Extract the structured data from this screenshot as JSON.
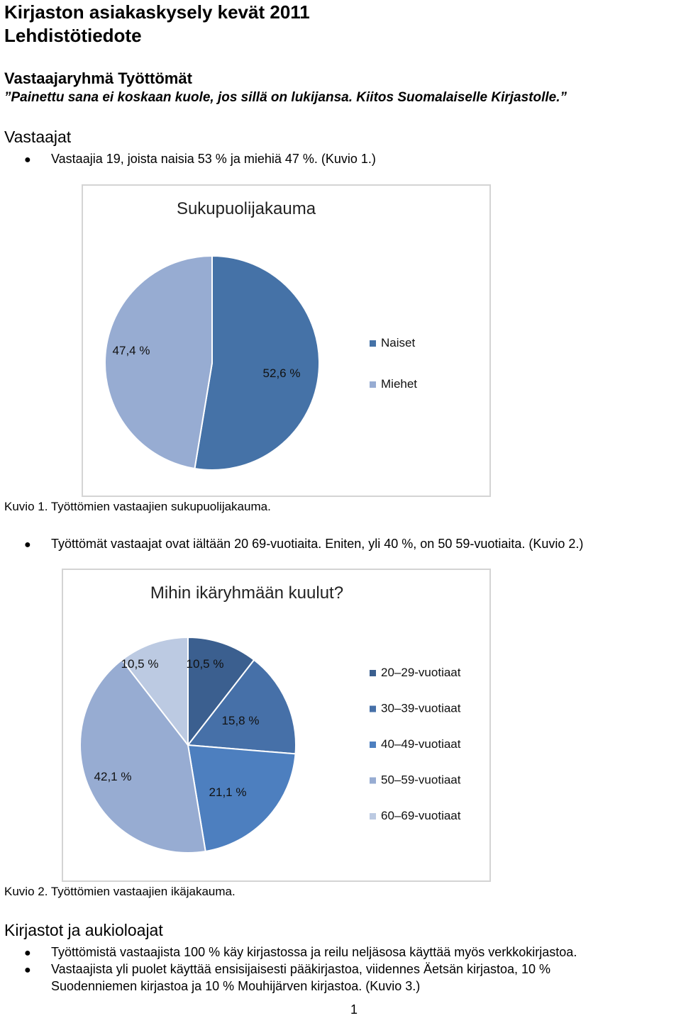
{
  "document": {
    "title_line1": "Kirjaston asiakaskysely kevät 2011",
    "title_line2": "Lehdistötiedote",
    "group_heading": "Vastaajaryhmä Työttömät",
    "quote": "”Painettu sana ei koskaan kuole, jos sillä on lukijansa. Kiitos Suomalaiselle Kirjastolle.”",
    "section_respondents": "Vastaajat",
    "bullet_1": "Vastaajia 19, joista naisia 53 % ja miehiä 47 %. (Kuvio 1.)",
    "caption_1": "Kuvio 1. Työttömien vastaajien sukupuolijakauma.",
    "bullet_2": "Työttömät vastaajat ovat iältään 20 69-vuotiaita. Eniten, yli 40 %, on 50 59-vuotiaita. (Kuvio 2.)",
    "caption_2": "Kuvio 2. Työttömien vastaajien ikäjakauma.",
    "section_libraries": "Kirjastot ja aukioloajat",
    "bullet_3": "Työttömistä vastaajista 100 % käy kirjastossa ja reilu neljäsosa käyttää myös verkkokirjastoa.",
    "bullet_4_line1": "Vastaajista yli puolet käyttää ensisijaisesti pääkirjastoa, viidennes Äetsän kirjastoa, 10 %",
    "bullet_4_line2": "Suodenniemen kirjastoa ja 10 % Mouhijärven kirjastoa. (Kuvio 3.)",
    "page_number": "1",
    "bullet_glyph": "●"
  },
  "chart_data": [
    {
      "type": "pie",
      "title": "Sukupuolijakauma",
      "categories": [
        "Naiset",
        "Miehet"
      ],
      "values": [
        52.6,
        47.4
      ],
      "labels": [
        "52,6 %",
        "47,4 %"
      ],
      "colors": [
        "#4572a7",
        "#97acd2"
      ],
      "legend": "right"
    },
    {
      "type": "pie",
      "title": "Mihin ikäryhmään kuulut?",
      "categories": [
        "20–29-vuotiaat",
        "30–39-vuotiaat",
        "40–49-vuotiaat",
        "50–59-vuotiaat",
        "60–69-vuotiaat"
      ],
      "values": [
        10.5,
        15.8,
        21.1,
        42.1,
        10.5
      ],
      "labels": [
        "10,5 %",
        "15,8 %",
        "21,1 %",
        "42,1 %",
        "10,5 %"
      ],
      "colors": [
        "#3b5f8f",
        "#4670a8",
        "#4d7fbf",
        "#97acd2",
        "#bccae2"
      ],
      "legend": "right"
    }
  ]
}
